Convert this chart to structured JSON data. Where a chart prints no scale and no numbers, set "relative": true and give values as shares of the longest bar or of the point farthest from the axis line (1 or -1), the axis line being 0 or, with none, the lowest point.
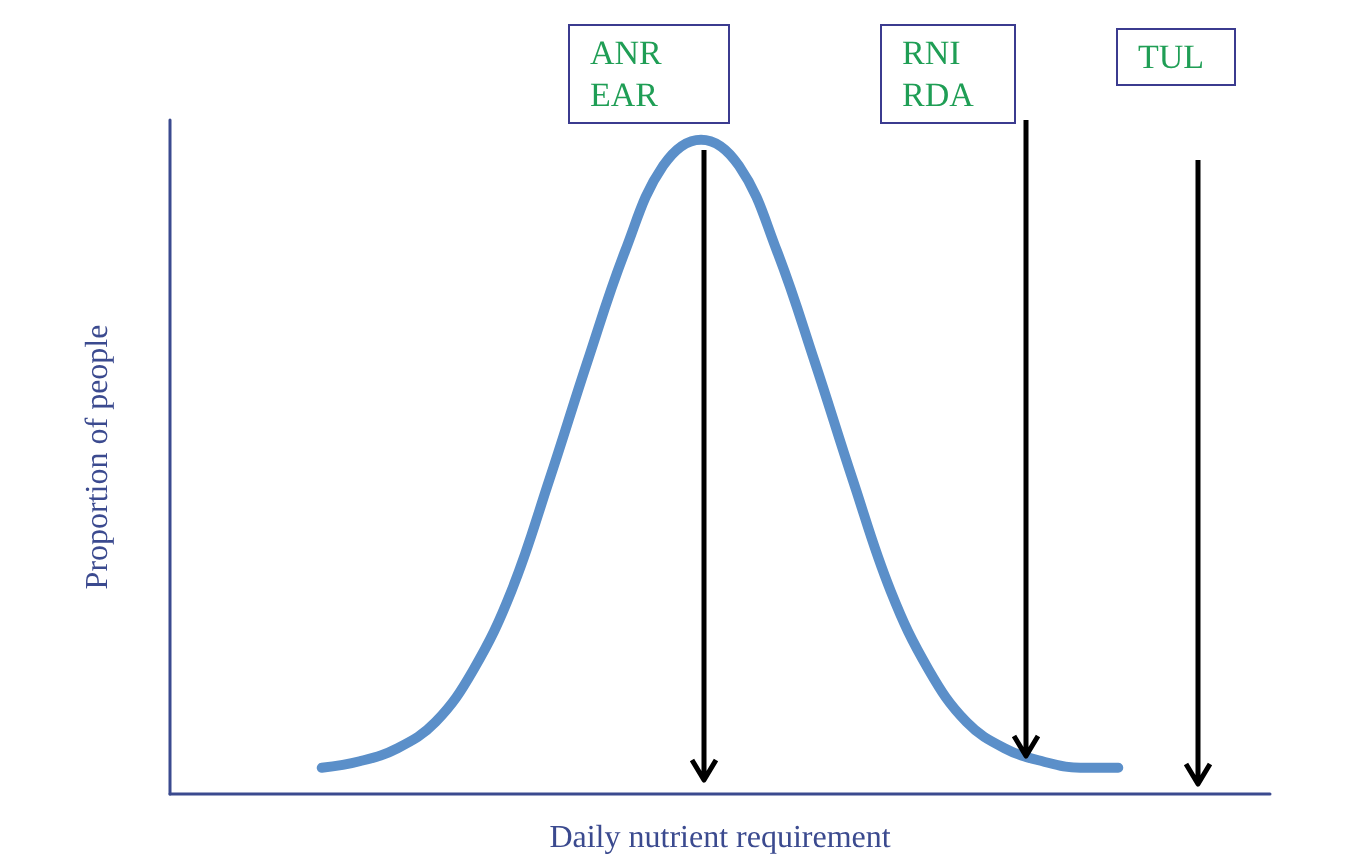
{
  "chart_data": {
    "type": "line",
    "relative": true,
    "xlabel": "Daily nutrient requirement",
    "ylabel": "Proportion of people",
    "grid": false,
    "categories": [
      null,
      null,
      null,
      null,
      null,
      null,
      null,
      null,
      null,
      null,
      null,
      null,
      null,
      null,
      null,
      null,
      null,
      null,
      null,
      null,
      null,
      null,
      null,
      null,
      null,
      null,
      null,
      null,
      null,
      null
    ],
    "series": [
      {
        "color": "#5b8fc9",
        "values": [
          null,
          null,
          null,
          null,
          0.04,
          0.05,
          0.07,
          0.11,
          0.19,
          0.31,
          0.48,
          0.66,
          0.83,
          0.96,
          1,
          0.96,
          0.83,
          0.66,
          0.48,
          0.31,
          0.19,
          0.11,
          0.07,
          0.05,
          0.04,
          0.04,
          null,
          null,
          null,
          null
        ]
      }
    ],
    "annotations": [
      "ANR\nEAR",
      "RNI\nRDA",
      "TUL"
    ]
  }
}
